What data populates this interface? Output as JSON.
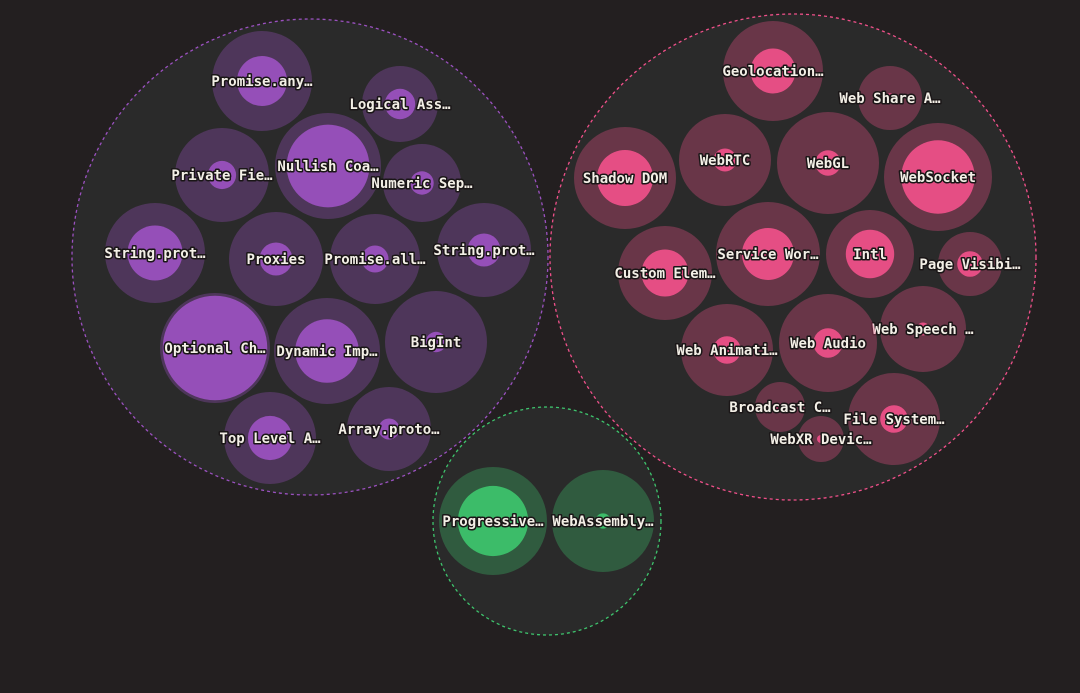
{
  "groups": [
    {
      "key": "js",
      "color": "#9b51c0",
      "items": [
        {
          "label": "Promise.any…",
          "level": 0.5
        },
        {
          "label": "Logical Ass…",
          "level": 0.4
        },
        {
          "label": "Private Fie…",
          "level": 0.3
        },
        {
          "label": "Nullish Coa…",
          "level": 0.78
        },
        {
          "label": "Numeric Sep…",
          "level": 0.3
        },
        {
          "label": "String.prot…",
          "level": 0.55
        },
        {
          "label": "Proxies",
          "level": 0.35
        },
        {
          "label": "Promise.all…",
          "level": 0.3
        },
        {
          "label": "String.prot…",
          "level": 0.35
        },
        {
          "label": "Optional Ch…",
          "level": 0.95
        },
        {
          "label": "Dynamic Imp…",
          "level": 0.6
        },
        {
          "label": "BigInt",
          "level": 0.2
        },
        {
          "label": "Top Level A…",
          "level": 0.48
        },
        {
          "label": "Array.proto…",
          "level": 0.25
        }
      ]
    },
    {
      "key": "web",
      "color": "#f0508a",
      "items": [
        {
          "label": "Geolocation…",
          "level": 0.45
        },
        {
          "label": "Web Share A…",
          "level": 0.15
        },
        {
          "label": "Shadow DOM",
          "level": 0.55
        },
        {
          "label": "WebRTC",
          "level": 0.25
        },
        {
          "label": "WebGL",
          "level": 0.25
        },
        {
          "label": "WebSocket",
          "level": 0.68
        },
        {
          "label": "Custom Elem…",
          "level": 0.5
        },
        {
          "label": "Service Wor…",
          "level": 0.5
        },
        {
          "label": "Intl",
          "level": 0.55
        },
        {
          "label": "Page Visibi…",
          "level": 0.4
        },
        {
          "label": "Web Speech …",
          "level": 0.15
        },
        {
          "label": "Web Animati…",
          "level": 0.3
        },
        {
          "label": "Web Audio",
          "level": 0.3
        },
        {
          "label": "Broadcast C…",
          "level": 0.15
        },
        {
          "label": "File System…",
          "level": 0.3
        },
        {
          "label": "WebXR Devic…",
          "level": 0.15
        }
      ]
    },
    {
      "key": "platform",
      "color": "#3ec46d",
      "items": [
        {
          "label": "Progressive…",
          "level": 0.65
        },
        {
          "label": "WebAssembly…",
          "level": 0.15
        }
      ]
    }
  ],
  "colors": {
    "background": "#231f20",
    "group_fill": "#2a2a2a",
    "label": "#f3efe6"
  }
}
